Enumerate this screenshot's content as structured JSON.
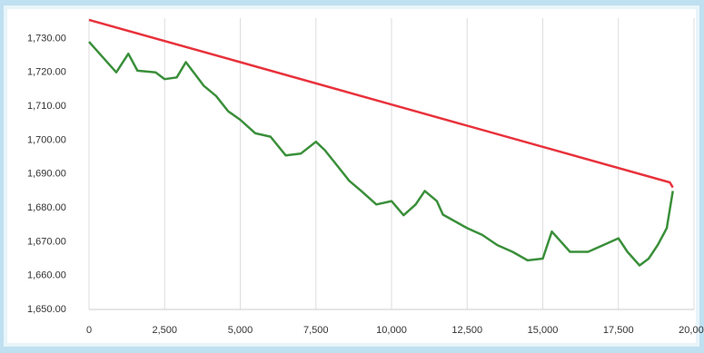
{
  "chart_data": {
    "type": "line",
    "xlim": [
      0,
      20000
    ],
    "xticks": [
      0,
      {
        "value": 2500,
        "label": "2,500"
      },
      {
        "value": 5000,
        "label": "5,000"
      },
      {
        "value": 7500,
        "label": "7,500"
      },
      {
        "value": 10000,
        "label": "10,000"
      },
      {
        "value": 12500,
        "label": "12,500"
      },
      {
        "value": 15000,
        "label": "15,000"
      },
      {
        "value": 17500,
        "label": "17,500"
      },
      {
        "value": 20000,
        "label": "20,000"
      }
    ],
    "ylim": [
      1650,
      1736
    ],
    "yticks": [
      {
        "value": 1650,
        "label": "1,650.00"
      },
      {
        "value": 1660,
        "label": "1,660.00"
      },
      {
        "value": 1670,
        "label": "1,670.00"
      },
      {
        "value": 1680,
        "label": "1,680.00"
      },
      {
        "value": 1690,
        "label": "1,690.00"
      },
      {
        "value": 1700,
        "label": "1,700.00"
      },
      {
        "value": 1710,
        "label": "1,710.00"
      },
      {
        "value": 1720,
        "label": "1,720.00"
      },
      {
        "value": 1730,
        "label": "1,730.00"
      }
    ],
    "grid": "x",
    "series": [
      {
        "color": "#e8323c",
        "x": [
          0,
          5000,
          10000,
          15000,
          19200,
          19300
        ],
        "values": [
          1735.5,
          1723,
          1710.5,
          1698,
          1687.5,
          1686
        ]
      },
      {
        "color": "#3a8f3a",
        "x": [
          0,
          500,
          900,
          1300,
          1600,
          2200,
          2500,
          2900,
          3200,
          3500,
          3800,
          4200,
          4600,
          5000,
          5500,
          6000,
          6500,
          7000,
          7500,
          7800,
          8200,
          8600,
          9000,
          9500,
          10000,
          10400,
          10800,
          11100,
          11500,
          11700,
          12500,
          13000,
          13500,
          14000,
          14500,
          15000,
          15300,
          15600,
          15900,
          16500,
          17000,
          17500,
          17800,
          18200,
          18500,
          18800,
          19100,
          19300
        ],
        "values": [
          1729,
          1724,
          1720,
          1725.5,
          1720.5,
          1720,
          1718,
          1718.5,
          1723,
          1719.5,
          1716,
          1713,
          1708.5,
          1706,
          1702,
          1701,
          1695.5,
          1696,
          1699.5,
          1697,
          1692.5,
          1688,
          1685,
          1681,
          1682,
          1677.8,
          1681,
          1685,
          1682,
          1678,
          1674,
          1672,
          1669,
          1667,
          1664.5,
          1665,
          1673,
          1670,
          1667,
          1667,
          1669,
          1671,
          1667,
          1663,
          1665,
          1669,
          1674,
          1685
        ]
      }
    ]
  }
}
